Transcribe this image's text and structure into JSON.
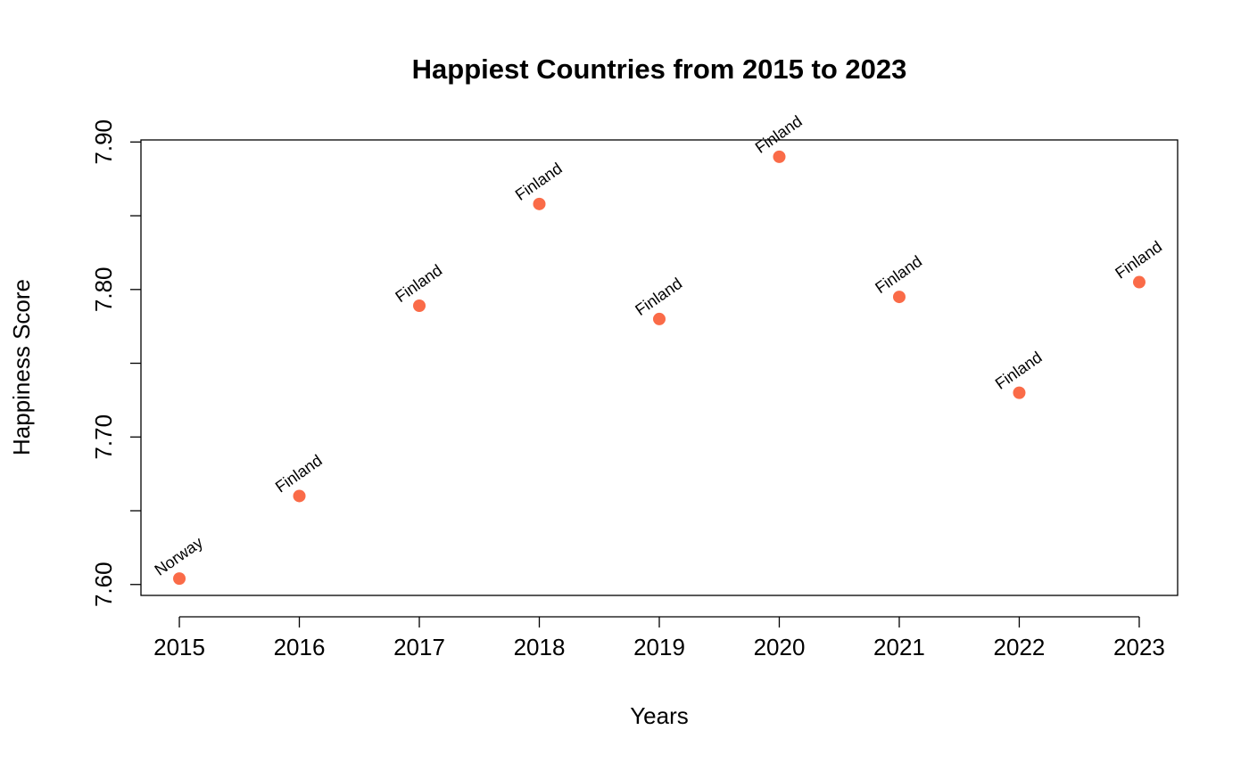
{
  "chart_data": {
    "type": "scatter",
    "title": "Happiest Countries from 2015 to 2023",
    "x_label": "Years",
    "y_label": "Happiness Score",
    "x": [
      2015,
      2016,
      2017,
      2018,
      2019,
      2020,
      2021,
      2022,
      2023
    ],
    "values": [
      7.604,
      7.66,
      7.789,
      7.858,
      7.78,
      7.89,
      7.795,
      7.73,
      7.805
    ],
    "labels": [
      "Norway",
      "Finland",
      "Finland",
      "Finland",
      "Finland",
      "Finland",
      "Finland",
      "Finland",
      "Finland"
    ],
    "color": "#fa6b48",
    "xlim": [
      2014.68,
      2023.32
    ],
    "xticks": [
      2015,
      2016,
      2017,
      2018,
      2019,
      2020,
      2021,
      2022,
      2023
    ],
    "ylim": [
      7.5926,
      7.9014
    ],
    "yticks": [
      {
        "value": 7.6,
        "label": "7.60"
      },
      {
        "value": 7.65,
        "label": null
      },
      {
        "value": 7.7,
        "label": "7.70"
      },
      {
        "value": 7.75,
        "label": null
      },
      {
        "value": 7.8,
        "label": "7.80"
      },
      {
        "value": 7.85,
        "label": null
      },
      {
        "value": 7.9,
        "label": "7.90"
      }
    ]
  }
}
